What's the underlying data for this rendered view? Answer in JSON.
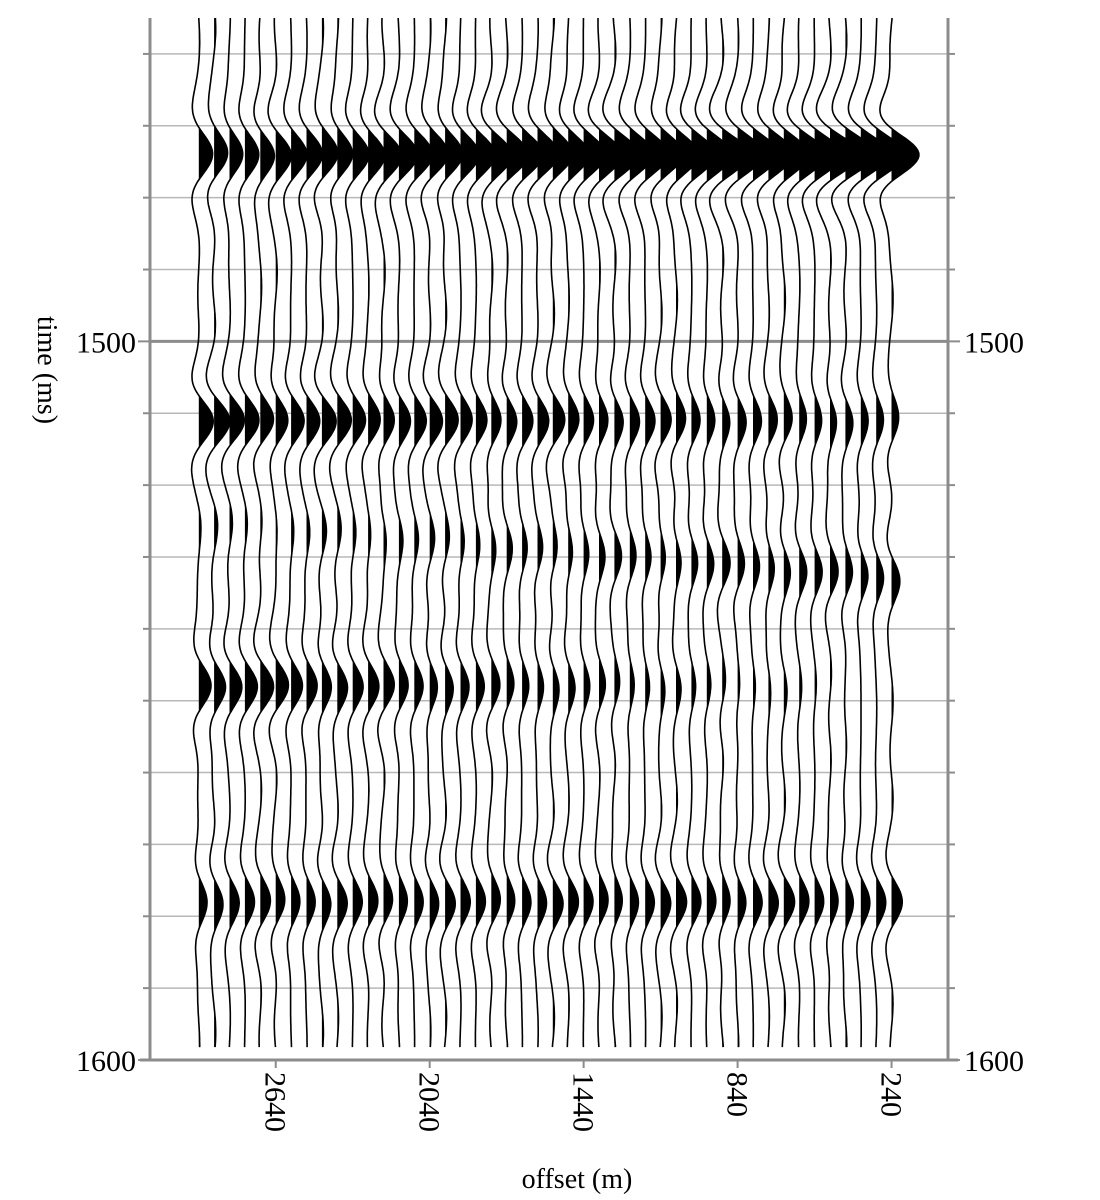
{
  "chart_data": {
    "type": "seismic-wiggle",
    "xlabel": "offset (m)",
    "ylabel": "time (ms)",
    "ylim": [
      1455,
      1600
    ],
    "yticks_major": [
      1500,
      1600
    ],
    "ytick_labels": [
      "1500",
      "1600"
    ],
    "yticks_minor_step": 10,
    "xlim": [
      3130,
      20
    ],
    "xticks": [
      2640,
      2040,
      1440,
      840,
      240
    ],
    "xtick_labels": [
      "2640",
      "2040",
      "1440",
      "840",
      "240"
    ],
    "grid": true,
    "trace_offsets": {
      "first": 2940,
      "last": 240,
      "step": 60
    },
    "events": [
      {
        "name": "",
        "t0_ms": 1474,
        "moveout_ms": 0,
        "amp_near": 2.2,
        "amp_far": 1.0
      },
      {
        "name": "",
        "t0_ms": 1511,
        "moveout_ms": 0,
        "amp_near": 0.5,
        "amp_far": 1.1
      },
      {
        "name": "",
        "t0_ms": 1533,
        "moveout_ms": -8,
        "amp_near": 0.6,
        "amp_far": 0.15
      },
      {
        "name": "",
        "t0_ms": 1548,
        "moveout_ms": 0,
        "amp_near": 0.0,
        "amp_far": 1.0
      },
      {
        "name": "",
        "t0_ms": 1578,
        "moveout_ms": 0,
        "amp_near": 0.7,
        "amp_far": 0.7
      }
    ]
  }
}
